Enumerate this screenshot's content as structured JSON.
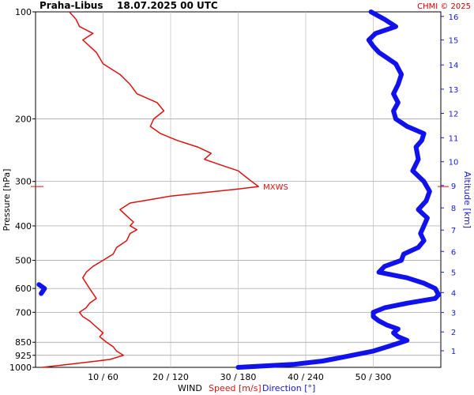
{
  "header": {
    "station": "Praha-Libus",
    "datetime": "18.07.2025 00 UTC",
    "copyright": "CHMI © 2025"
  },
  "colors": {
    "speed": "#dd1111",
    "direction": "#1111ee",
    "grid": "#999999",
    "altitude_axis": "#1a1ad6"
  },
  "chart_data": {
    "type": "line",
    "y_axis": {
      "label": "Pressure [hPa]",
      "scale": "log",
      "ticks": [
        "100",
        "200",
        "300",
        "400",
        "500",
        "600",
        "700",
        "850",
        "925",
        "1000"
      ],
      "tick_values": [
        100,
        200,
        300,
        400,
        500,
        600,
        700,
        850,
        925,
        1000
      ],
      "gridlines": [
        200,
        300,
        400,
        500,
        600,
        700,
        850,
        925
      ]
    },
    "y2_axis": {
      "label": "Altitude [km]",
      "ticks": [
        "1",
        "2",
        "3",
        "4",
        "5",
        "6",
        "7",
        "8",
        "9",
        "10",
        "11",
        "12",
        "13",
        "14",
        "15",
        "16"
      ],
      "tick_pressures": [
        898,
        795,
        701,
        616,
        540,
        472,
        411,
        356,
        308,
        264,
        226,
        193,
        165,
        141,
        120,
        103
      ]
    },
    "x_axis": {
      "label": "WIND",
      "speed_label": "Speed [m/s]",
      "direction_label": "Direction [°]",
      "ticks": [
        "10 / 60",
        "20 / 120",
        "30 / 180",
        "40 / 240",
        "50 / 300"
      ],
      "speed_range": [
        0,
        60
      ],
      "direction_range": [
        0,
        360
      ]
    },
    "annotations": [
      {
        "text": "MXWS",
        "pressure": 310,
        "speed": 33
      }
    ],
    "series": [
      {
        "name": "Speed [m/s]",
        "unit": "m/s",
        "points": [
          [
            1000,
            1.0
          ],
          [
            975,
            6.0
          ],
          [
            950,
            11.0
          ],
          [
            925,
            13.0
          ],
          [
            900,
            12.0
          ],
          [
            875,
            11.5
          ],
          [
            850,
            10.5
          ],
          [
            820,
            9.5
          ],
          [
            800,
            10.0
          ],
          [
            770,
            9.0
          ],
          [
            740,
            8.0
          ],
          [
            720,
            7.0
          ],
          [
            700,
            6.5
          ],
          [
            680,
            7.5
          ],
          [
            660,
            8.0
          ],
          [
            640,
            9.0
          ],
          [
            620,
            8.5
          ],
          [
            600,
            8.0
          ],
          [
            580,
            7.5
          ],
          [
            560,
            7.0
          ],
          [
            540,
            7.5
          ],
          [
            520,
            8.5
          ],
          [
            500,
            10.0
          ],
          [
            480,
            11.5
          ],
          [
            460,
            12.0
          ],
          [
            440,
            13.5
          ],
          [
            420,
            14.0
          ],
          [
            410,
            15.0
          ],
          [
            400,
            14.0
          ],
          [
            390,
            14.5
          ],
          [
            375,
            13.5
          ],
          [
            360,
            12.5
          ],
          [
            345,
            14.0
          ],
          [
            330,
            20.0
          ],
          [
            315,
            30.0
          ],
          [
            310,
            33.0
          ],
          [
            300,
            32.0
          ],
          [
            290,
            31.0
          ],
          [
            280,
            30.0
          ],
          [
            270,
            27.5
          ],
          [
            260,
            25.0
          ],
          [
            250,
            26.0
          ],
          [
            240,
            24.0
          ],
          [
            230,
            21.0
          ],
          [
            220,
            18.5
          ],
          [
            210,
            17.0
          ],
          [
            200,
            17.5
          ],
          [
            190,
            19.0
          ],
          [
            180,
            18.0
          ],
          [
            170,
            15.0
          ],
          [
            160,
            14.0
          ],
          [
            150,
            12.5
          ],
          [
            140,
            10.0
          ],
          [
            130,
            9.0
          ],
          [
            120,
            7.0
          ],
          [
            115,
            8.5
          ],
          [
            110,
            6.5
          ],
          [
            105,
            6.0
          ],
          [
            100,
            5.0
          ]
        ]
      },
      {
        "name": "Direction [°]",
        "unit": "°",
        "points": [
          [
            1000,
            180
          ],
          [
            980,
            230
          ],
          [
            960,
            255
          ],
          [
            940,
            270
          ],
          [
            920,
            285
          ],
          [
            900,
            300
          ],
          [
            880,
            310
          ],
          [
            860,
            320
          ],
          [
            840,
            330
          ],
          [
            820,
            322
          ],
          [
            800,
            318
          ],
          [
            780,
            322
          ],
          [
            760,
            312
          ],
          [
            740,
            305
          ],
          [
            720,
            300
          ],
          [
            700,
            300
          ],
          [
            680,
            310
          ],
          [
            660,
            330
          ],
          [
            640,
            355
          ],
          [
            625,
            358
          ],
          [
            600,
            355
          ],
          [
            580,
            345
          ],
          [
            560,
            330
          ],
          [
            540,
            305
          ],
          [
            520,
            310
          ],
          [
            500,
            325
          ],
          [
            480,
            327
          ],
          [
            460,
            340
          ],
          [
            440,
            345
          ],
          [
            420,
            342
          ],
          [
            400,
            345
          ],
          [
            380,
            348
          ],
          [
            360,
            340
          ],
          [
            340,
            347
          ],
          [
            320,
            350
          ],
          [
            300,
            345
          ],
          [
            280,
            335
          ],
          [
            260,
            340
          ],
          [
            240,
            338
          ],
          [
            230,
            343
          ],
          [
            220,
            345
          ],
          [
            210,
            330
          ],
          [
            200,
            320
          ],
          [
            190,
            318
          ],
          [
            180,
            322
          ],
          [
            170,
            318
          ],
          [
            160,
            322
          ],
          [
            150,
            325
          ],
          [
            140,
            320
          ],
          [
            130,
            305
          ],
          [
            125,
            300
          ],
          [
            120,
            296
          ],
          [
            115,
            302
          ],
          [
            110,
            320
          ],
          [
            105,
            310
          ],
          [
            100,
            298
          ]
        ]
      },
      {
        "name": "Direction [°]",
        "unit": "°",
        "points": [
          [
            620,
            5
          ],
          [
            600,
            8
          ],
          [
            585,
            3
          ]
        ]
      }
    ]
  }
}
